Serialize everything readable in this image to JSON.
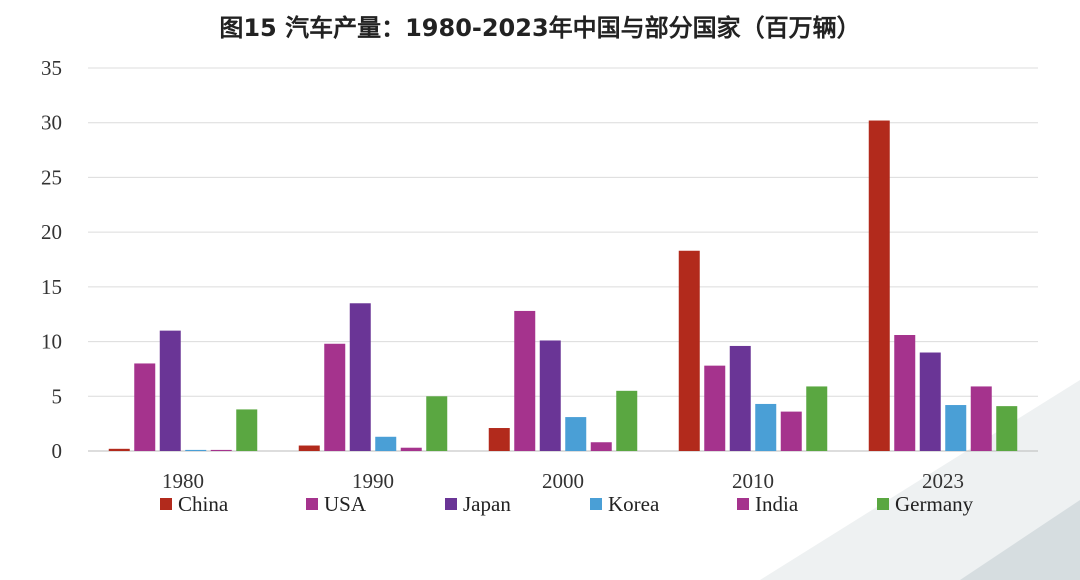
{
  "chart_data": {
    "type": "bar",
    "title": "图15 汽车产量：1980-2023年中国与部分国家（百万辆）",
    "categories": [
      "1980",
      "1990",
      "2000",
      "2010",
      "2023"
    ],
    "ylim": [
      0,
      35
    ],
    "yticks": [
      0,
      5,
      10,
      15,
      20,
      25,
      30,
      35
    ],
    "grid": true,
    "legend_position": "bottom",
    "series": [
      {
        "name": "China",
        "color": "#b22a1c",
        "values": [
          0.2,
          0.5,
          2.1,
          18.3,
          30.2
        ]
      },
      {
        "name": "USA",
        "color": "#a5338d",
        "values": [
          8.0,
          9.8,
          12.8,
          7.8,
          10.6
        ]
      },
      {
        "name": "Japan",
        "color": "#6a3596",
        "values": [
          11.0,
          13.5,
          10.1,
          9.6,
          9.0
        ]
      },
      {
        "name": "Korea",
        "color": "#4a9fd6",
        "values": [
          0.1,
          1.3,
          3.1,
          4.3,
          4.2
        ]
      },
      {
        "name": "India",
        "color": "#a5338d",
        "values": [
          0.1,
          0.3,
          0.8,
          3.6,
          5.9
        ]
      },
      {
        "name": "Germany",
        "color": "#5aa741",
        "values": [
          3.8,
          5.0,
          5.5,
          5.9,
          4.1
        ]
      }
    ]
  }
}
